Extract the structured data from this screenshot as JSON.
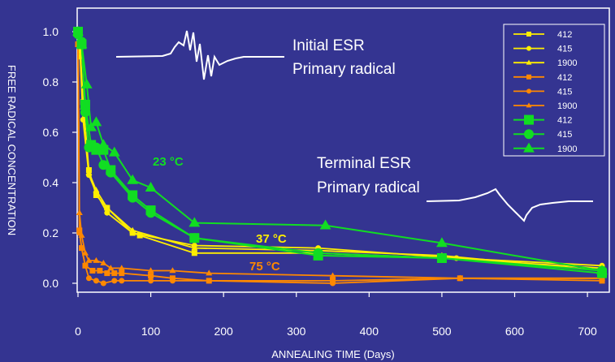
{
  "chart_data": {
    "type": "line",
    "title": "",
    "xlabel": "ANNEALING TIME (Days)",
    "ylabel": "FREE RADICAL CONCENTRATION",
    "xlim": [
      -5,
      730
    ],
    "ylim": [
      -0.05,
      1.07
    ],
    "xticks": [
      "0",
      "100",
      "200",
      "300",
      "400",
      "500",
      "600",
      "700"
    ],
    "yticks": [
      "0.0",
      "0.2",
      "0.4",
      "0.6",
      "0.8",
      "1.0"
    ],
    "grid": false,
    "legend_position": "top-right",
    "series": [
      {
        "name": "412",
        "color": "#ffee00",
        "marker": "square",
        "size": "small",
        "points": [
          [
            0,
            1.0
          ],
          [
            3,
            0.93
          ],
          [
            7,
            0.72
          ],
          [
            15,
            0.45
          ],
          [
            25,
            0.35
          ],
          [
            40,
            0.3
          ],
          [
            75,
            0.2
          ],
          [
            85,
            0.19
          ],
          [
            160,
            0.12
          ],
          [
            330,
            0.12
          ],
          [
            500,
            0.1
          ],
          [
            720,
            0.06
          ]
        ]
      },
      {
        "name": "415",
        "color": "#ffee00",
        "marker": "circle",
        "size": "small",
        "points": [
          [
            0,
            1.0
          ],
          [
            3,
            0.9
          ],
          [
            7,
            0.65
          ],
          [
            15,
            0.43
          ],
          [
            25,
            0.36
          ],
          [
            40,
            0.28
          ],
          [
            75,
            0.2
          ],
          [
            160,
            0.15
          ],
          [
            330,
            0.14
          ],
          [
            520,
            0.1
          ],
          [
            720,
            0.07
          ]
        ]
      },
      {
        "name": "1900",
        "color": "#ffee00",
        "marker": "triangle",
        "size": "small",
        "points": [
          [
            0,
            1.0
          ],
          [
            3,
            0.92
          ],
          [
            7,
            0.7
          ],
          [
            15,
            0.44
          ],
          [
            25,
            0.37
          ],
          [
            40,
            0.3
          ],
          [
            75,
            0.21
          ],
          [
            160,
            0.14
          ],
          [
            330,
            0.13
          ],
          [
            500,
            0.11
          ],
          [
            720,
            0.05
          ]
        ]
      },
      {
        "name": "412",
        "color": "#ff8800",
        "marker": "square",
        "size": "small",
        "points": [
          [
            0,
            0.95
          ],
          [
            2,
            0.21
          ],
          [
            5,
            0.14
          ],
          [
            10,
            0.07
          ],
          [
            20,
            0.05
          ],
          [
            30,
            0.05
          ],
          [
            40,
            0.04
          ],
          [
            50,
            0.04
          ],
          [
            60,
            0.04
          ],
          [
            100,
            0.03
          ],
          [
            130,
            0.02
          ],
          [
            180,
            0.01
          ],
          [
            350,
            0.01
          ],
          [
            525,
            0.02
          ],
          [
            720,
            0.01
          ]
        ]
      },
      {
        "name": "415",
        "color": "#ff8800",
        "marker": "circle",
        "size": "small",
        "points": [
          [
            0,
            0.95
          ],
          [
            2,
            0.2
          ],
          [
            5,
            0.14
          ],
          [
            10,
            0.07
          ],
          [
            15,
            0.02
          ],
          [
            25,
            0.01
          ],
          [
            35,
            0.0
          ],
          [
            50,
            0.01
          ],
          [
            60,
            0.01
          ],
          [
            100,
            0.01
          ],
          [
            130,
            0.01
          ],
          [
            180,
            0.01
          ],
          [
            350,
            0.0
          ],
          [
            525,
            0.02
          ],
          [
            720,
            0.02
          ]
        ]
      },
      {
        "name": "1900",
        "color": "#ff8800",
        "marker": "triangle",
        "size": "small",
        "points": [
          [
            0,
            0.95
          ],
          [
            2,
            0.28
          ],
          [
            5,
            0.19
          ],
          [
            10,
            0.12
          ],
          [
            15,
            0.09
          ],
          [
            25,
            0.09
          ],
          [
            35,
            0.08
          ],
          [
            45,
            0.06
          ],
          [
            60,
            0.06
          ],
          [
            100,
            0.05
          ],
          [
            130,
            0.05
          ],
          [
            180,
            0.04
          ],
          [
            350,
            0.03
          ],
          [
            525,
            0.02
          ],
          [
            720,
            0.02
          ]
        ]
      },
      {
        "name": "412",
        "color": "#11dd22",
        "marker": "square",
        "size": "large",
        "points": [
          [
            0,
            1.0
          ],
          [
            5,
            0.95
          ],
          [
            10,
            0.71
          ],
          [
            18,
            0.55
          ],
          [
            25,
            0.53
          ],
          [
            35,
            0.53
          ],
          [
            45,
            0.45
          ],
          [
            75,
            0.35
          ],
          [
            100,
            0.29
          ],
          [
            160,
            0.18
          ],
          [
            330,
            0.11
          ],
          [
            500,
            0.1
          ],
          [
            720,
            0.04
          ]
        ]
      },
      {
        "name": "415",
        "color": "#11dd22",
        "marker": "circle",
        "size": "large",
        "points": [
          [
            0,
            0.99
          ],
          [
            5,
            0.96
          ],
          [
            10,
            0.68
          ],
          [
            15,
            0.54
          ],
          [
            25,
            0.54
          ],
          [
            35,
            0.47
          ],
          [
            45,
            0.44
          ],
          [
            75,
            0.34
          ],
          [
            100,
            0.28
          ],
          [
            160,
            0.18
          ],
          [
            330,
            0.12
          ],
          [
            500,
            0.1
          ],
          [
            720,
            0.05
          ]
        ]
      },
      {
        "name": "1900",
        "color": "#11dd22",
        "marker": "triangle",
        "size": "large",
        "points": [
          [
            0,
            1.0
          ],
          [
            5,
            0.95
          ],
          [
            12,
            0.79
          ],
          [
            18,
            0.62
          ],
          [
            25,
            0.64
          ],
          [
            35,
            0.55
          ],
          [
            50,
            0.52
          ],
          [
            75,
            0.41
          ],
          [
            100,
            0.38
          ],
          [
            160,
            0.24
          ],
          [
            340,
            0.23
          ],
          [
            500,
            0.16
          ],
          [
            720,
            0.05
          ]
        ]
      }
    ],
    "annotations": [
      {
        "text": "Initial ESR",
        "color": "#ffffff"
      },
      {
        "text": "Primary radical",
        "color": "#ffffff"
      },
      {
        "text": "Terminal ESR",
        "color": "#ffffff"
      },
      {
        "text": "Primary radical",
        "color": "#ffffff"
      },
      {
        "text": "23 °C",
        "color": "#11dd22"
      },
      {
        "text": "37 °C",
        "color": "#ffee00"
      },
      {
        "text": "75 °C",
        "color": "#ff8800"
      }
    ]
  }
}
